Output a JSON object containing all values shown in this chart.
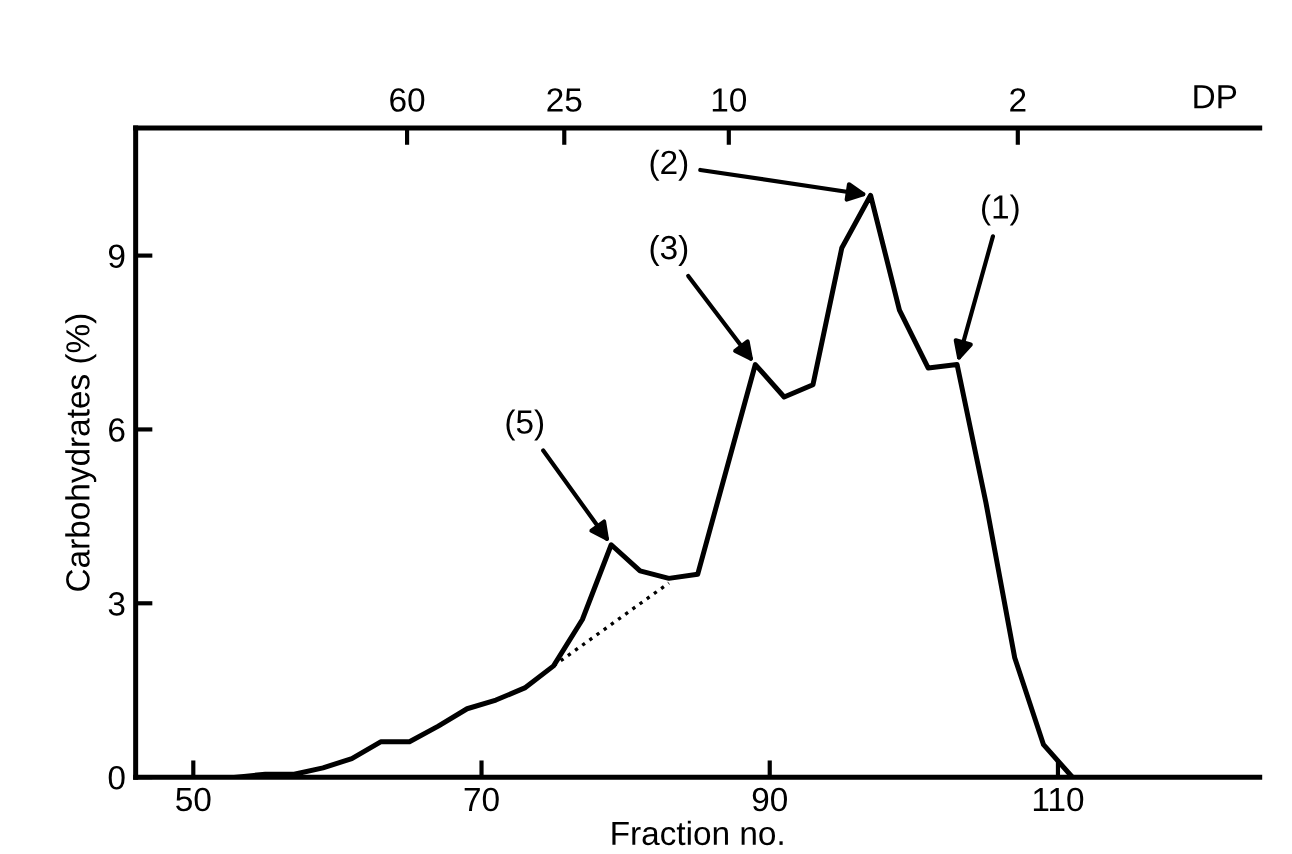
{
  "chart_data": {
    "type": "line",
    "xlabel": "Fraction no.",
    "ylabel": "Carbohydrates (%)",
    "x2label": "DP",
    "xlim": [
      46,
      124
    ],
    "xticks": [
      50,
      70,
      90,
      110
    ],
    "ylim": [
      0,
      11.2
    ],
    "yticks": [
      0,
      3,
      6,
      9
    ],
    "x2lim": [
      272,
      0.52
    ],
    "x2ticks": [
      60,
      25,
      10,
      2
    ],
    "log": "x2",
    "grid": false,
    "legend": false,
    "marker": "none",
    "series": [
      {
        "color": "#000000",
        "line_style": "solid",
        "x": [
          53,
          55,
          57,
          59,
          61,
          63,
          65,
          67,
          69,
          71,
          73,
          75,
          77,
          79,
          81,
          83,
          85,
          89,
          91,
          93,
          95,
          97,
          99,
          101,
          103,
          105,
          107,
          109,
          111
        ],
        "values": [
          0,
          0.05,
          0.05,
          0.16,
          0.32,
          0.61,
          0.61,
          0.88,
          1.18,
          1.33,
          1.54,
          1.92,
          2.72,
          4.01,
          3.56,
          3.43,
          3.5,
          7.12,
          6.56,
          6.77,
          9.13,
          10.04,
          8.06,
          7.06,
          7.12,
          4.74,
          2.06,
          0.56,
          0
        ]
      },
      {
        "color": "#000000",
        "line_style": "dotted",
        "x": [
          75,
          83
        ],
        "values": [
          1.92,
          3.35
        ]
      }
    ],
    "annotations": [
      {
        "text": "(5)",
        "x": 79,
        "y": 4.01
      },
      {
        "text": "(3)",
        "x": 89,
        "y": 7.12
      },
      {
        "text": "(2)",
        "x": 97,
        "y": 10.04
      },
      {
        "text": "(1)",
        "x": 103,
        "y": 7.12
      }
    ]
  }
}
